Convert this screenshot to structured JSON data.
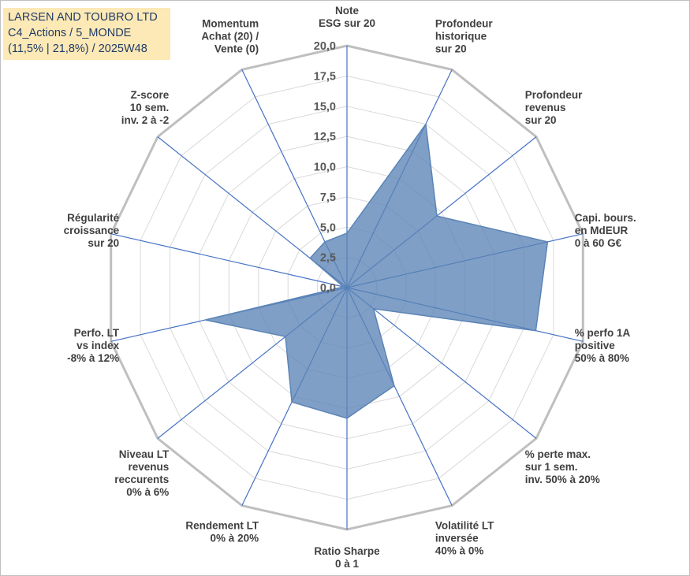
{
  "title": {
    "line1": "LARSEN AND TOUBRO LTD",
    "line2": "C4_Actions / 5_MONDE",
    "line3": "(11,5% | 21,8%) / 2025W48"
  },
  "chart_data": {
    "type": "radar",
    "rmin": 0,
    "rmax": 20,
    "tick_labels": [
      "0,0",
      "2,5",
      "5,0",
      "7,5",
      "10,0",
      "12,5",
      "15,0",
      "17,5",
      "20,0"
    ],
    "axes": [
      {
        "lines": [
          "Note",
          "ESG sur 20"
        ],
        "value": 4.5
      },
      {
        "lines": [
          "Profondeur",
          "historique",
          "sur 20"
        ],
        "value": 15.0
      },
      {
        "lines": [
          "Profondeur",
          "revenus",
          "sur 20"
        ],
        "value": 9.5
      },
      {
        "lines": [
          "Capi. bours.",
          "en MdEUR",
          "0 à 60 G€"
        ],
        "value": 17.0
      },
      {
        "lines": [
          "% perfo 1A",
          "positive",
          "50% à 80%"
        ],
        "value": 16.0
      },
      {
        "lines": [
          "% perte max.",
          "sur 1 sem.",
          "inv. 50% à 20%"
        ],
        "value": 2.8
      },
      {
        "lines": [
          "Volatilité LT",
          "inversée",
          "40% à 0%"
        ],
        "value": 9.0
      },
      {
        "lines": [
          "Ratio Sharpe",
          "0 à 1"
        ],
        "value": 10.8
      },
      {
        "lines": [
          "Rendement LT",
          "0% à 20%"
        ],
        "value": 10.5
      },
      {
        "lines": [
          "Niveau LT",
          "revenus",
          "reccurents",
          "0% à 6%"
        ],
        "value": 6.5
      },
      {
        "lines": [
          "Perfo. LT",
          "vs index",
          "-8% à 12%"
        ],
        "value": 12.0
      },
      {
        "lines": [
          "Régularité",
          "croissance",
          "sur 20"
        ],
        "value": 0.3
      },
      {
        "lines": [
          "Z-score",
          "10 sem.",
          "inv. 2 à -2"
        ],
        "value": 3.9
      },
      {
        "lines": [
          "Momentum",
          "Achat (20) /",
          "Vente (0)"
        ],
        "value": 4.2
      }
    ],
    "colors": {
      "fill": "#5b84b6",
      "stroke": "#5b84b6",
      "grid": "#d9d9d9",
      "outer_grid": "#bfbfbf",
      "spoke": "#4472c4"
    }
  }
}
